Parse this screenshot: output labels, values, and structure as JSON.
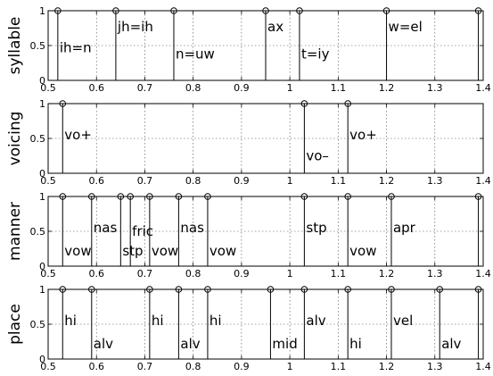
{
  "chart_data": [
    {
      "type": "stem",
      "ylabel": "syllable",
      "xlim": [
        0.5,
        1.4
      ],
      "ylim": [
        0,
        1
      ],
      "xticks": [
        "0.5",
        "0.6",
        "0.7",
        "0.8",
        "0.9",
        "1",
        "1.1",
        "1.2",
        "1.3",
        "1.4"
      ],
      "yticks": [
        "0",
        "0.5",
        "1"
      ],
      "boundaries": [
        0.52,
        0.64,
        0.76,
        0.95,
        1.02,
        1.2,
        1.39
      ],
      "labels": [
        {
          "x": 0.52,
          "y": 0.47,
          "text": "ih=n"
        },
        {
          "x": 0.64,
          "y": 0.77,
          "text": "jh=ih"
        },
        {
          "x": 0.76,
          "y": 0.38,
          "text": "n=uw"
        },
        {
          "x": 0.95,
          "y": 0.77,
          "text": "ax"
        },
        {
          "x": 1.02,
          "y": 0.38,
          "text": "t=iy"
        },
        {
          "x": 1.2,
          "y": 0.77,
          "text": "w=el"
        }
      ]
    },
    {
      "type": "stem",
      "ylabel": "voicing",
      "xlim": [
        0.5,
        1.4
      ],
      "ylim": [
        0,
        1
      ],
      "xticks": [
        "0.5",
        "0.6",
        "0.7",
        "0.8",
        "0.9",
        "1",
        "1.1",
        "1.2",
        "1.3",
        "1.4"
      ],
      "yticks": [
        "0",
        "0.5",
        "1"
      ],
      "boundaries": [
        0.53,
        1.03,
        1.12
      ],
      "labels": [
        {
          "x": 0.53,
          "y": 0.55,
          "text": "vo+"
        },
        {
          "x": 1.03,
          "y": 0.25,
          "text": "vo–"
        },
        {
          "x": 1.12,
          "y": 0.55,
          "text": "vo+"
        }
      ]
    },
    {
      "type": "stem",
      "ylabel": "manner",
      "xlim": [
        0.5,
        1.4
      ],
      "ylim": [
        0,
        1
      ],
      "xticks": [
        "0.5",
        "0.6",
        "0.7",
        "0.8",
        "0.9",
        "1",
        "1.1",
        "1.2",
        "1.3",
        "1.4"
      ],
      "yticks": [
        "0",
        "0.5",
        "1"
      ],
      "boundaries": [
        0.53,
        0.59,
        0.65,
        0.67,
        0.71,
        0.77,
        0.83,
        1.03,
        1.12,
        1.21,
        1.39
      ],
      "labels": [
        {
          "x": 0.53,
          "y": 0.22,
          "text": "vow"
        },
        {
          "x": 0.59,
          "y": 0.55,
          "text": "nas"
        },
        {
          "x": 0.65,
          "y": 0.22,
          "text": "stp"
        },
        {
          "x": 0.67,
          "y": 0.5,
          "text": "fric"
        },
        {
          "x": 0.71,
          "y": 0.22,
          "text": "vow"
        },
        {
          "x": 0.77,
          "y": 0.55,
          "text": "nas"
        },
        {
          "x": 0.83,
          "y": 0.22,
          "text": "vow"
        },
        {
          "x": 1.03,
          "y": 0.55,
          "text": "stp"
        },
        {
          "x": 1.12,
          "y": 0.22,
          "text": "vow"
        },
        {
          "x": 1.21,
          "y": 0.55,
          "text": "apr"
        }
      ]
    },
    {
      "type": "stem",
      "ylabel": "place",
      "xlim": [
        0.5,
        1.4
      ],
      "ylim": [
        0,
        1
      ],
      "xticks": [
        "0.5",
        "0.6",
        "0.7",
        "0.8",
        "0.9",
        "1",
        "1.1",
        "1.2",
        "1.3",
        "1.4"
      ],
      "yticks": [
        "0",
        "0.5",
        "1"
      ],
      "boundaries": [
        0.53,
        0.59,
        0.71,
        0.77,
        0.83,
        0.96,
        1.03,
        1.12,
        1.21,
        1.31,
        1.39
      ],
      "labels": [
        {
          "x": 0.53,
          "y": 0.55,
          "text": "hi"
        },
        {
          "x": 0.59,
          "y": 0.22,
          "text": "alv"
        },
        {
          "x": 0.71,
          "y": 0.55,
          "text": "hi"
        },
        {
          "x": 0.77,
          "y": 0.22,
          "text": "alv"
        },
        {
          "x": 0.83,
          "y": 0.55,
          "text": "hi"
        },
        {
          "x": 0.96,
          "y": 0.22,
          "text": "mid"
        },
        {
          "x": 1.03,
          "y": 0.55,
          "text": "alv"
        },
        {
          "x": 1.12,
          "y": 0.22,
          "text": "hi"
        },
        {
          "x": 1.21,
          "y": 0.55,
          "text": "vel"
        },
        {
          "x": 1.31,
          "y": 0.22,
          "text": "alv"
        }
      ]
    }
  ]
}
